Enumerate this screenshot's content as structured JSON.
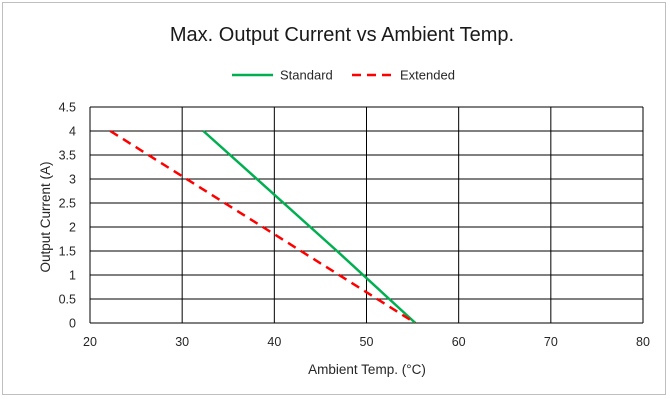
{
  "chart_data": {
    "type": "line",
    "title": "Max. Output Current vs Ambient Temp.",
    "xlabel": "Ambient Temp. (°C)",
    "ylabel": "Output Current (A)",
    "xlim": [
      20,
      80
    ],
    "ylim": [
      0,
      4.5
    ],
    "x_ticks": [
      "20",
      "30",
      "40",
      "50",
      "60",
      "70",
      "80"
    ],
    "y_ticks": [
      "0",
      "0.5",
      "1",
      "1.5",
      "2",
      "2.5",
      "3",
      "3.5",
      "4",
      "4.5"
    ],
    "grid": true,
    "legend_position": "top",
    "series": [
      {
        "name": "Standard",
        "color": "#00b050",
        "dash": "solid",
        "points": [
          [
            32.3,
            4.0
          ],
          [
            46.8,
            1.5
          ],
          [
            55.3,
            0.0
          ]
        ]
      },
      {
        "name": "Extended",
        "color": "#ff0000",
        "dash": "dashed",
        "points": [
          [
            22.2,
            4.0
          ],
          [
            55.3,
            0.0
          ]
        ]
      }
    ]
  }
}
